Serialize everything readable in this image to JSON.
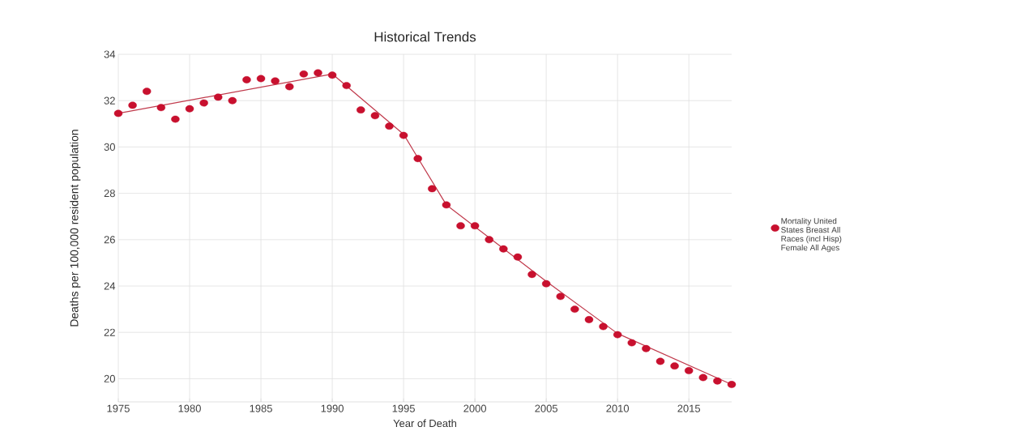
{
  "chart_data": {
    "type": "scatter",
    "title": "Historical Trends",
    "xlabel": "Year of Death",
    "ylabel": "Deaths per 100,000 resident population",
    "xlim": [
      1975,
      2018
    ],
    "xticks": [
      1975,
      1980,
      1985,
      1990,
      1995,
      2000,
      2005,
      2010,
      2015
    ],
    "ylim": [
      19,
      34
    ],
    "yticks": [
      20,
      22,
      24,
      26,
      28,
      30,
      32,
      34
    ],
    "grid": true,
    "legend": "right",
    "series": [
      {
        "name": "Mortality United States Breast All Races (incl Hisp) Female All Ages",
        "marker": "circle",
        "color": "#c8102e",
        "x": [
          1975,
          1976,
          1977,
          1978,
          1979,
          1980,
          1981,
          1982,
          1983,
          1984,
          1985,
          1986,
          1987,
          1988,
          1989,
          1990,
          1991,
          1992,
          1993,
          1994,
          1995,
          1996,
          1997,
          1998,
          1999,
          2000,
          2001,
          2002,
          2003,
          2004,
          2005,
          2006,
          2007,
          2008,
          2009,
          2010,
          2011,
          2012,
          2013,
          2014,
          2015,
          2016,
          2017,
          2018
        ],
        "values": [
          31.45,
          31.8,
          32.4,
          31.7,
          31.2,
          31.65,
          31.9,
          32.15,
          32.0,
          32.9,
          32.95,
          32.85,
          32.6,
          33.15,
          33.2,
          33.1,
          32.65,
          31.6,
          31.35,
          30.9,
          30.5,
          29.5,
          28.2,
          27.5,
          26.6,
          26.6,
          26.0,
          25.6,
          25.25,
          24.5,
          24.1,
          23.55,
          23.0,
          22.55,
          22.25,
          21.9,
          21.55,
          21.3,
          20.75,
          20.55,
          20.35,
          20.05,
          19.9,
          19.75
        ]
      },
      {
        "type": "line",
        "marker": "none",
        "line_style": "solid",
        "color": "#c0394b",
        "x": [
          1975,
          1990,
          1995,
          1998,
          2005,
          2010,
          2018
        ],
        "values": [
          31.45,
          33.15,
          30.55,
          27.5,
          24.2,
          21.95,
          19.75
        ]
      }
    ]
  }
}
